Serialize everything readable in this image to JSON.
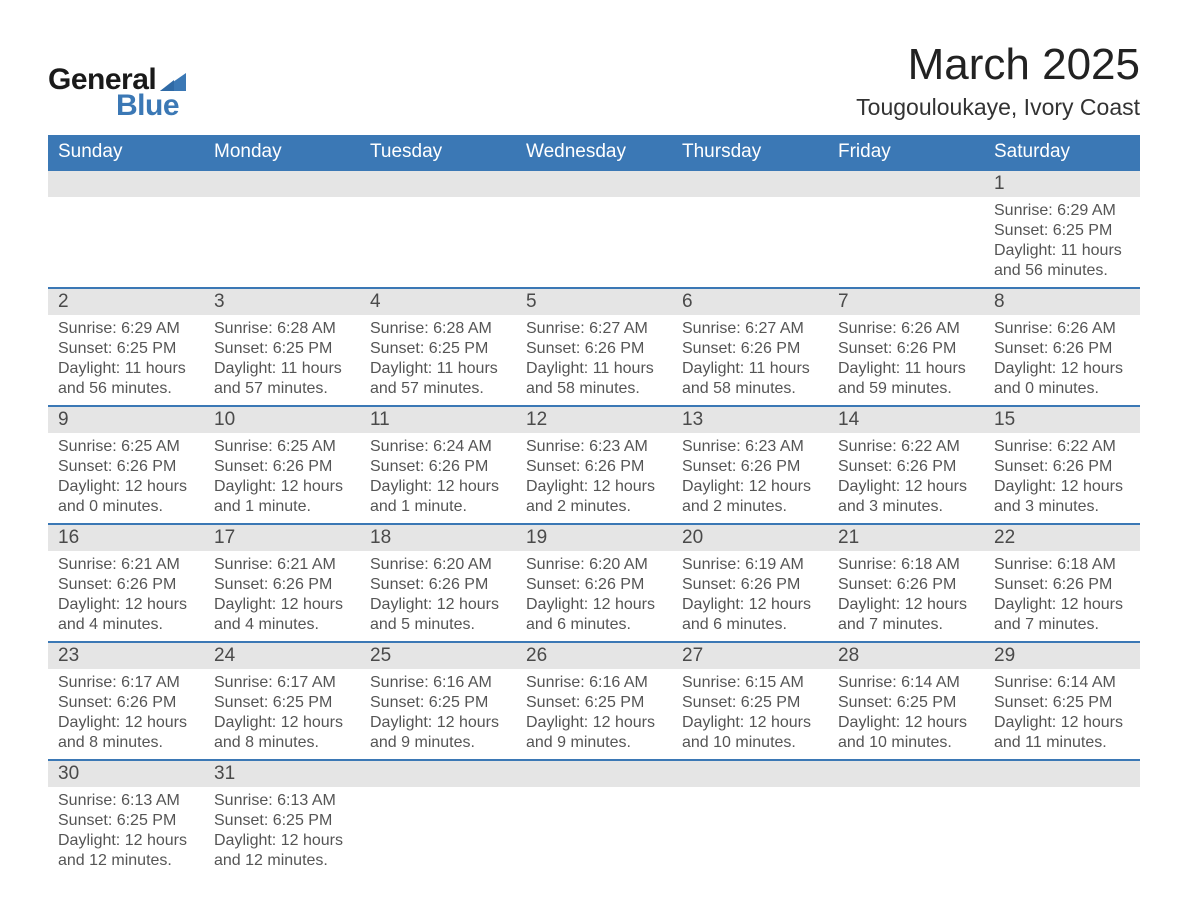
{
  "colors": {
    "accent": "#3b78b5",
    "row_header_bg": "#e5e5e5",
    "background": "#ffffff",
    "text": "#3a3a3a",
    "text_muted": "#555555",
    "rule": "#3b78b5",
    "logo_text_dark": "#1a1a1a"
  },
  "logo": {
    "word1": "General",
    "word2": "Blue"
  },
  "header": {
    "month_title": "March 2025",
    "location": "Tougouloukaye, Ivory Coast"
  },
  "day_names": [
    "Sunday",
    "Monday",
    "Tuesday",
    "Wednesday",
    "Thursday",
    "Friday",
    "Saturday"
  ],
  "labels": {
    "sunrise": "Sunrise",
    "sunset": "Sunset",
    "daylight": "Daylight"
  },
  "month": {
    "year": 2025,
    "month": 3,
    "start_day_index": 6,
    "weeks": [
      [
        null,
        null,
        null,
        null,
        null,
        null,
        {
          "d": 1,
          "sunrise": "6:29 AM",
          "sunset": "6:25 PM",
          "daylight": "11 hours and 56 minutes."
        }
      ],
      [
        {
          "d": 2,
          "sunrise": "6:29 AM",
          "sunset": "6:25 PM",
          "daylight": "11 hours and 56 minutes."
        },
        {
          "d": 3,
          "sunrise": "6:28 AM",
          "sunset": "6:25 PM",
          "daylight": "11 hours and 57 minutes."
        },
        {
          "d": 4,
          "sunrise": "6:28 AM",
          "sunset": "6:25 PM",
          "daylight": "11 hours and 57 minutes."
        },
        {
          "d": 5,
          "sunrise": "6:27 AM",
          "sunset": "6:26 PM",
          "daylight": "11 hours and 58 minutes."
        },
        {
          "d": 6,
          "sunrise": "6:27 AM",
          "sunset": "6:26 PM",
          "daylight": "11 hours and 58 minutes."
        },
        {
          "d": 7,
          "sunrise": "6:26 AM",
          "sunset": "6:26 PM",
          "daylight": "11 hours and 59 minutes."
        },
        {
          "d": 8,
          "sunrise": "6:26 AM",
          "sunset": "6:26 PM",
          "daylight": "12 hours and 0 minutes."
        }
      ],
      [
        {
          "d": 9,
          "sunrise": "6:25 AM",
          "sunset": "6:26 PM",
          "daylight": "12 hours and 0 minutes."
        },
        {
          "d": 10,
          "sunrise": "6:25 AM",
          "sunset": "6:26 PM",
          "daylight": "12 hours and 1 minute."
        },
        {
          "d": 11,
          "sunrise": "6:24 AM",
          "sunset": "6:26 PM",
          "daylight": "12 hours and 1 minute."
        },
        {
          "d": 12,
          "sunrise": "6:23 AM",
          "sunset": "6:26 PM",
          "daylight": "12 hours and 2 minutes."
        },
        {
          "d": 13,
          "sunrise": "6:23 AM",
          "sunset": "6:26 PM",
          "daylight": "12 hours and 2 minutes."
        },
        {
          "d": 14,
          "sunrise": "6:22 AM",
          "sunset": "6:26 PM",
          "daylight": "12 hours and 3 minutes."
        },
        {
          "d": 15,
          "sunrise": "6:22 AM",
          "sunset": "6:26 PM",
          "daylight": "12 hours and 3 minutes."
        }
      ],
      [
        {
          "d": 16,
          "sunrise": "6:21 AM",
          "sunset": "6:26 PM",
          "daylight": "12 hours and 4 minutes."
        },
        {
          "d": 17,
          "sunrise": "6:21 AM",
          "sunset": "6:26 PM",
          "daylight": "12 hours and 4 minutes."
        },
        {
          "d": 18,
          "sunrise": "6:20 AM",
          "sunset": "6:26 PM",
          "daylight": "12 hours and 5 minutes."
        },
        {
          "d": 19,
          "sunrise": "6:20 AM",
          "sunset": "6:26 PM",
          "daylight": "12 hours and 6 minutes."
        },
        {
          "d": 20,
          "sunrise": "6:19 AM",
          "sunset": "6:26 PM",
          "daylight": "12 hours and 6 minutes."
        },
        {
          "d": 21,
          "sunrise": "6:18 AM",
          "sunset": "6:26 PM",
          "daylight": "12 hours and 7 minutes."
        },
        {
          "d": 22,
          "sunrise": "6:18 AM",
          "sunset": "6:26 PM",
          "daylight": "12 hours and 7 minutes."
        }
      ],
      [
        {
          "d": 23,
          "sunrise": "6:17 AM",
          "sunset": "6:26 PM",
          "daylight": "12 hours and 8 minutes."
        },
        {
          "d": 24,
          "sunrise": "6:17 AM",
          "sunset": "6:25 PM",
          "daylight": "12 hours and 8 minutes."
        },
        {
          "d": 25,
          "sunrise": "6:16 AM",
          "sunset": "6:25 PM",
          "daylight": "12 hours and 9 minutes."
        },
        {
          "d": 26,
          "sunrise": "6:16 AM",
          "sunset": "6:25 PM",
          "daylight": "12 hours and 9 minutes."
        },
        {
          "d": 27,
          "sunrise": "6:15 AM",
          "sunset": "6:25 PM",
          "daylight": "12 hours and 10 minutes."
        },
        {
          "d": 28,
          "sunrise": "6:14 AM",
          "sunset": "6:25 PM",
          "daylight": "12 hours and 10 minutes."
        },
        {
          "d": 29,
          "sunrise": "6:14 AM",
          "sunset": "6:25 PM",
          "daylight": "12 hours and 11 minutes."
        }
      ],
      [
        {
          "d": 30,
          "sunrise": "6:13 AM",
          "sunset": "6:25 PM",
          "daylight": "12 hours and 12 minutes."
        },
        {
          "d": 31,
          "sunrise": "6:13 AM",
          "sunset": "6:25 PM",
          "daylight": "12 hours and 12 minutes."
        },
        null,
        null,
        null,
        null,
        null
      ]
    ]
  }
}
